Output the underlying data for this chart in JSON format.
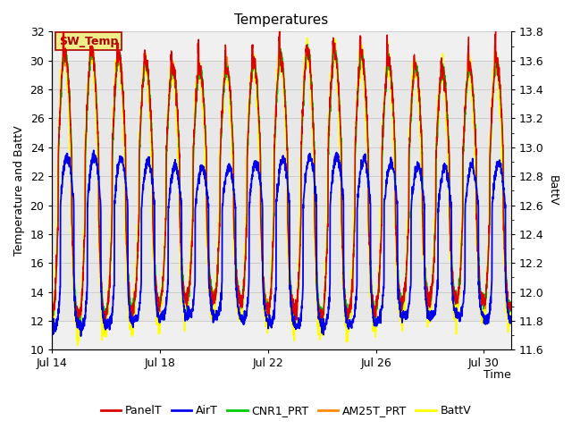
{
  "title": "Temperatures",
  "ylabel_left": "Temperature and BattV",
  "ylabel_right": "BattV",
  "xlabel": "Time",
  "ylim_left": [
    10,
    32
  ],
  "ylim_right": [
    11.6,
    13.8
  ],
  "x_ticks_labels": [
    "Jul 14",
    "Jul 18",
    "Jul 22",
    "Jul 26",
    "Jul 30"
  ],
  "x_ticks_pos": [
    0,
    4,
    8,
    12,
    16
  ],
  "n_days": 17,
  "legend_entries": [
    "PanelT",
    "AirT",
    "CNR1_PRT",
    "AM25T_PRT",
    "BattV"
  ],
  "line_colors": [
    "#dd0000",
    "#0000ee",
    "#00cc00",
    "#ff8800",
    "#ffff00"
  ],
  "annotation_text": "SW_Temp",
  "annotation_fg": "#aa0000",
  "annotation_bg": "#eeee88",
  "annotation_edge": "#aa0000",
  "shading_ymin": 12,
  "shading_ymax": 30,
  "background_color": "#ffffff",
  "plot_bg_color": "#f0f0f0",
  "grid_color": "#cccccc",
  "title_fontsize": 11,
  "axis_label_fontsize": 9,
  "tick_fontsize": 9,
  "lw": 1.0
}
